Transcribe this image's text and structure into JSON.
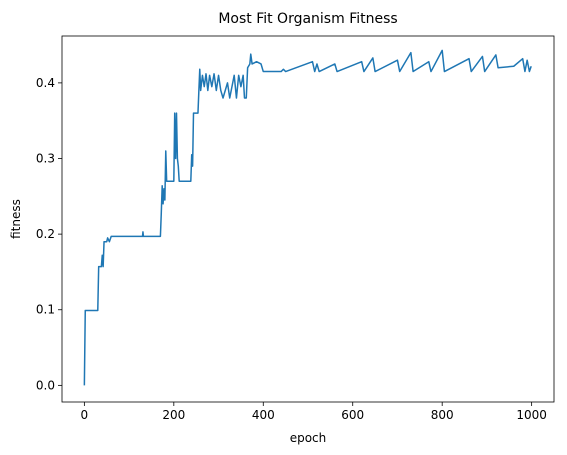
{
  "chart_data": {
    "type": "line",
    "title": "Most Fit Organism Fitness",
    "x_label": "epoch",
    "y_label": "fitness",
    "xlim": [
      -50,
      1050
    ],
    "ylim": [
      -0.022,
      0.462
    ],
    "xticks": [
      0,
      200,
      400,
      600,
      800,
      1000
    ],
    "yticks": [
      {
        "value": 0,
        "label": "0.0"
      },
      0.1,
      0.2,
      0.3,
      0.4
    ],
    "series": [
      {
        "color": "#1f77b4",
        "x": [
          0,
          2,
          30,
          32,
          38,
          40,
          42,
          44,
          50,
          52,
          56,
          60,
          130,
          131,
          132,
          170,
          172,
          174,
          176,
          178,
          180,
          182,
          184,
          200,
          202,
          204,
          206,
          208,
          210,
          212,
          238,
          240,
          242,
          244,
          254,
          256,
          258,
          260,
          264,
          268,
          272,
          276,
          280,
          285,
          290,
          295,
          300,
          305,
          310,
          320,
          325,
          335,
          340,
          345,
          350,
          355,
          358,
          362,
          365,
          370,
          372,
          375,
          385,
          395,
          400,
          440,
          445,
          450,
          510,
          515,
          520,
          525,
          560,
          565,
          620,
          625,
          645,
          650,
          700,
          705,
          730,
          735,
          770,
          775,
          800,
          805,
          860,
          865,
          890,
          895,
          920,
          925,
          960,
          980,
          985,
          990,
          995,
          999
        ],
        "values": [
          0,
          0.099,
          0.099,
          0.157,
          0.157,
          0.172,
          0.157,
          0.19,
          0.19,
          0.195,
          0.19,
          0.197,
          0.197,
          0.203,
          0.197,
          0.197,
          0.228,
          0.264,
          0.24,
          0.26,
          0.245,
          0.31,
          0.27,
          0.27,
          0.36,
          0.3,
          0.36,
          0.3,
          0.29,
          0.27,
          0.27,
          0.305,
          0.29,
          0.36,
          0.36,
          0.39,
          0.418,
          0.39,
          0.41,
          0.395,
          0.412,
          0.39,
          0.41,
          0.395,
          0.412,
          0.39,
          0.41,
          0.39,
          0.38,
          0.4,
          0.38,
          0.41,
          0.38,
          0.41,
          0.395,
          0.41,
          0.38,
          0.38,
          0.42,
          0.425,
          0.438,
          0.425,
          0.428,
          0.425,
          0.415,
          0.415,
          0.418,
          0.415,
          0.428,
          0.415,
          0.425,
          0.415,
          0.425,
          0.415,
          0.428,
          0.415,
          0.433,
          0.415,
          0.43,
          0.415,
          0.44,
          0.415,
          0.428,
          0.415,
          0.443,
          0.415,
          0.432,
          0.415,
          0.435,
          0.415,
          0.437,
          0.42,
          0.422,
          0.432,
          0.415,
          0.43,
          0.415,
          0.422
        ]
      }
    ]
  }
}
